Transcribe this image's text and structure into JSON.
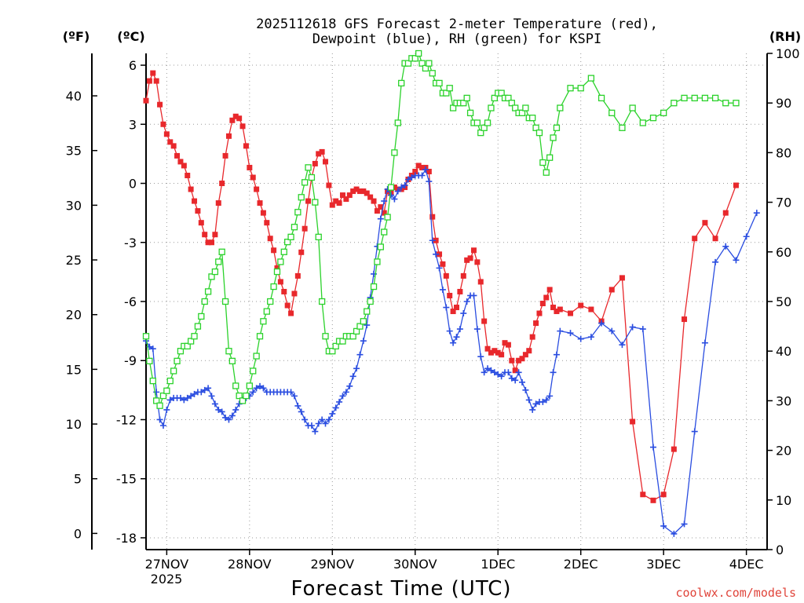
{
  "chart_data": {
    "type": "line",
    "title_line1": "2025112618 GFS Forecast 2-meter Temperature (red),",
    "title_line2": "Dewpoint (blue), RH (green) for KSPI",
    "xlabel": "Forecast Time (UTC)",
    "credit": "coolwx.com/models",
    "unit_f": "(ºF)",
    "unit_c": "(ºC)",
    "unit_rh": "(RH)",
    "x_ticks": [
      {
        "day": 0.25,
        "label": "27NOV"
      },
      {
        "day": 1.25,
        "label": "28NOV"
      },
      {
        "day": 2.25,
        "label": "29NOV"
      },
      {
        "day": 3.25,
        "label": "30NOV"
      },
      {
        "day": 4.25,
        "label": "1DEC"
      },
      {
        "day": 5.25,
        "label": "2DEC"
      },
      {
        "day": 6.25,
        "label": "3DEC"
      },
      {
        "day": 7.25,
        "label": "4DEC"
      }
    ],
    "year_label": "2025",
    "xlim": [
      0,
      7.5
    ],
    "ylim_c": [
      -18.6,
      6.6
    ],
    "c_ticks": [
      6,
      3,
      0,
      -3,
      -6,
      -9,
      -12,
      -15,
      -18
    ],
    "f_ticks": [
      40,
      35,
      30,
      25,
      20,
      15,
      10,
      5,
      0
    ],
    "rh_ticks": [
      100,
      90,
      80,
      70,
      60,
      50,
      40,
      30,
      20,
      10,
      0
    ],
    "x_hours": [
      0,
      1,
      2,
      3,
      4,
      5,
      6,
      7,
      8,
      9,
      10,
      11,
      12,
      13,
      14,
      15,
      16,
      17,
      18,
      19,
      20,
      21,
      22,
      23,
      24,
      25,
      26,
      27,
      28,
      29,
      30,
      31,
      32,
      33,
      34,
      35,
      36,
      37,
      38,
      39,
      40,
      41,
      42,
      43,
      44,
      45,
      46,
      47,
      48,
      49,
      50,
      51,
      52,
      53,
      54,
      55,
      56,
      57,
      58,
      59,
      60,
      61,
      62,
      63,
      64,
      65,
      66,
      67,
      68,
      69,
      70,
      71,
      72,
      73,
      74,
      75,
      76,
      77,
      78,
      79,
      80,
      81,
      82,
      83,
      84,
      85,
      86,
      87,
      88,
      89,
      90,
      91,
      92,
      93,
      94,
      95,
      96,
      97,
      98,
      99,
      100,
      101,
      102,
      103,
      104,
      105,
      106,
      107,
      108,
      109,
      110,
      111,
      112,
      113,
      114,
      115,
      116,
      117,
      118,
      119,
      120,
      123,
      126,
      129,
      132,
      135,
      138,
      141,
      144,
      147,
      150,
      153,
      156,
      159,
      162,
      165,
      168,
      171,
      174,
      177,
      180
    ],
    "series": [
      {
        "name": "Temperature (°C)",
        "color": "#e8282c",
        "marker": "square-filled",
        "values": [
          4.2,
          5.2,
          5.6,
          5.2,
          4.0,
          3.0,
          2.5,
          2.1,
          1.9,
          1.4,
          1.1,
          0.9,
          0.4,
          -0.3,
          -0.9,
          -1.4,
          -2.0,
          -2.6,
          -3.0,
          -3.0,
          -2.6,
          -1.0,
          0.0,
          1.4,
          2.4,
          3.2,
          3.4,
          3.3,
          2.9,
          1.9,
          0.8,
          0.3,
          -0.3,
          -1.0,
          -1.5,
          -2.0,
          -2.8,
          -3.4,
          -4.3,
          -5.0,
          -5.5,
          -6.2,
          -6.6,
          -5.6,
          -4.7,
          -3.5,
          -2.3,
          -0.9,
          0.3,
          1.0,
          1.5,
          1.6,
          1.1,
          -0.1,
          -1.1,
          -0.9,
          -1.0,
          -0.6,
          -0.8,
          -0.6,
          -0.4,
          -0.3,
          -0.4,
          -0.4,
          -0.5,
          -0.7,
          -0.9,
          -1.4,
          -1.2,
          -1.5,
          -0.4,
          -0.5,
          -0.2,
          -0.3,
          -0.3,
          -0.2,
          0.2,
          0.4,
          0.6,
          0.9,
          0.8,
          0.8,
          0.6,
          -1.7,
          -2.9,
          -3.6,
          -4.1,
          -4.7,
          -5.7,
          -6.5,
          -6.3,
          -5.5,
          -4.7,
          -3.9,
          -3.8,
          -3.4,
          -4.0,
          -5.0,
          -7.0,
          -8.4,
          -8.6,
          -8.5,
          -8.6,
          -8.7,
          -8.1,
          -8.2,
          -9.0,
          -9.5,
          -9.0,
          -8.9,
          -8.7,
          -8.5,
          -7.8,
          -7.1,
          -6.6,
          -6.1,
          -5.8,
          -5.4,
          -6.3,
          -6.5,
          -6.4,
          -6.6,
          -6.2,
          -6.4,
          -7.0,
          -5.4,
          -4.8,
          -12.1,
          -15.8,
          -16.1,
          -15.8,
          -13.5,
          -6.9,
          -2.8,
          -2.0,
          -2.8,
          -1.5,
          -0.1
        ]
      },
      {
        "name": "Dewpoint (°C)",
        "color": "#2a4de0",
        "marker": "plus",
        "values": [
          -8.0,
          -8.3,
          -8.4,
          -10.6,
          -12.0,
          -12.3,
          -11.5,
          -11.0,
          -10.9,
          -10.9,
          -10.9,
          -11.0,
          -10.9,
          -10.8,
          -10.7,
          -10.6,
          -10.6,
          -10.5,
          -10.4,
          -10.8,
          -11.2,
          -11.5,
          -11.6,
          -11.9,
          -12.0,
          -11.8,
          -11.5,
          -11.2,
          -11.0,
          -10.9,
          -10.8,
          -10.6,
          -10.4,
          -10.3,
          -10.4,
          -10.6,
          -10.6,
          -10.6,
          -10.6,
          -10.6,
          -10.6,
          -10.6,
          -10.6,
          -10.8,
          -11.3,
          -11.6,
          -12.0,
          -12.3,
          -12.3,
          -12.6,
          -12.2,
          -12.0,
          -12.2,
          -12.0,
          -11.7,
          -11.4,
          -11.1,
          -10.8,
          -10.6,
          -10.3,
          -9.8,
          -9.4,
          -8.7,
          -8.0,
          -7.2,
          -5.8,
          -4.6,
          -3.2,
          -1.8,
          -0.9,
          -0.3,
          -0.6,
          -0.8,
          -0.4,
          -0.2,
          -0.1,
          0.2,
          0.3,
          0.4,
          0.4,
          0.4,
          0.7,
          0.1,
          -2.9,
          -3.6,
          -4.3,
          -5.4,
          -6.3,
          -7.5,
          -8.1,
          -7.8,
          -7.4,
          -6.6,
          -6.0,
          -5.7,
          -5.7,
          -7.4,
          -8.8,
          -9.6,
          -9.4,
          -9.5,
          -9.6,
          -9.7,
          -9.8,
          -9.6,
          -9.6,
          -9.9,
          -10.0,
          -9.6,
          -10.1,
          -10.5,
          -11.0,
          -11.5,
          -11.2,
          -11.1,
          -11.1,
          -11.0,
          -10.8,
          -9.6,
          -8.7,
          -7.5,
          -7.6,
          -7.9,
          -7.8,
          -7.1,
          -7.5,
          -8.2,
          -7.3,
          -7.4,
          -13.4,
          -17.4,
          -17.8,
          -17.3,
          -12.6,
          -8.1,
          -4.0,
          -3.2,
          -3.9,
          -2.7,
          -1.5
        ]
      },
      {
        "name": "RH (%)",
        "color": "#2bd22b",
        "marker": "square-open",
        "values": [
          43,
          38,
          34,
          30,
          29,
          31,
          32,
          34,
          36,
          38,
          40,
          41,
          41,
          42,
          43,
          45,
          47,
          50,
          52,
          55,
          56,
          58,
          60,
          50,
          40,
          38,
          33,
          31,
          30,
          31,
          33,
          36,
          39,
          43,
          46,
          48,
          50,
          53,
          56,
          58,
          60,
          62,
          63,
          65,
          68,
          71,
          74,
          77,
          75,
          70,
          63,
          50,
          43,
          40,
          40,
          41,
          42,
          42,
          43,
          43,
          43,
          44,
          45,
          46,
          48,
          50,
          53,
          58,
          61,
          64,
          67,
          73,
          80,
          86,
          94,
          98,
          98,
          99,
          99,
          100,
          98,
          97,
          98,
          96,
          94,
          94,
          92,
          92,
          93,
          89,
          90,
          90,
          90,
          91,
          88,
          86,
          86,
          84,
          85,
          86,
          89,
          91,
          92,
          92,
          91,
          91,
          90,
          89,
          88,
          88,
          89,
          87,
          87,
          85,
          84,
          78,
          76,
          79,
          83,
          85,
          89,
          93,
          93,
          95,
          91,
          88,
          85,
          89,
          86,
          87,
          88,
          90,
          91,
          91,
          91,
          91,
          90,
          90
        ]
      }
    ]
  }
}
